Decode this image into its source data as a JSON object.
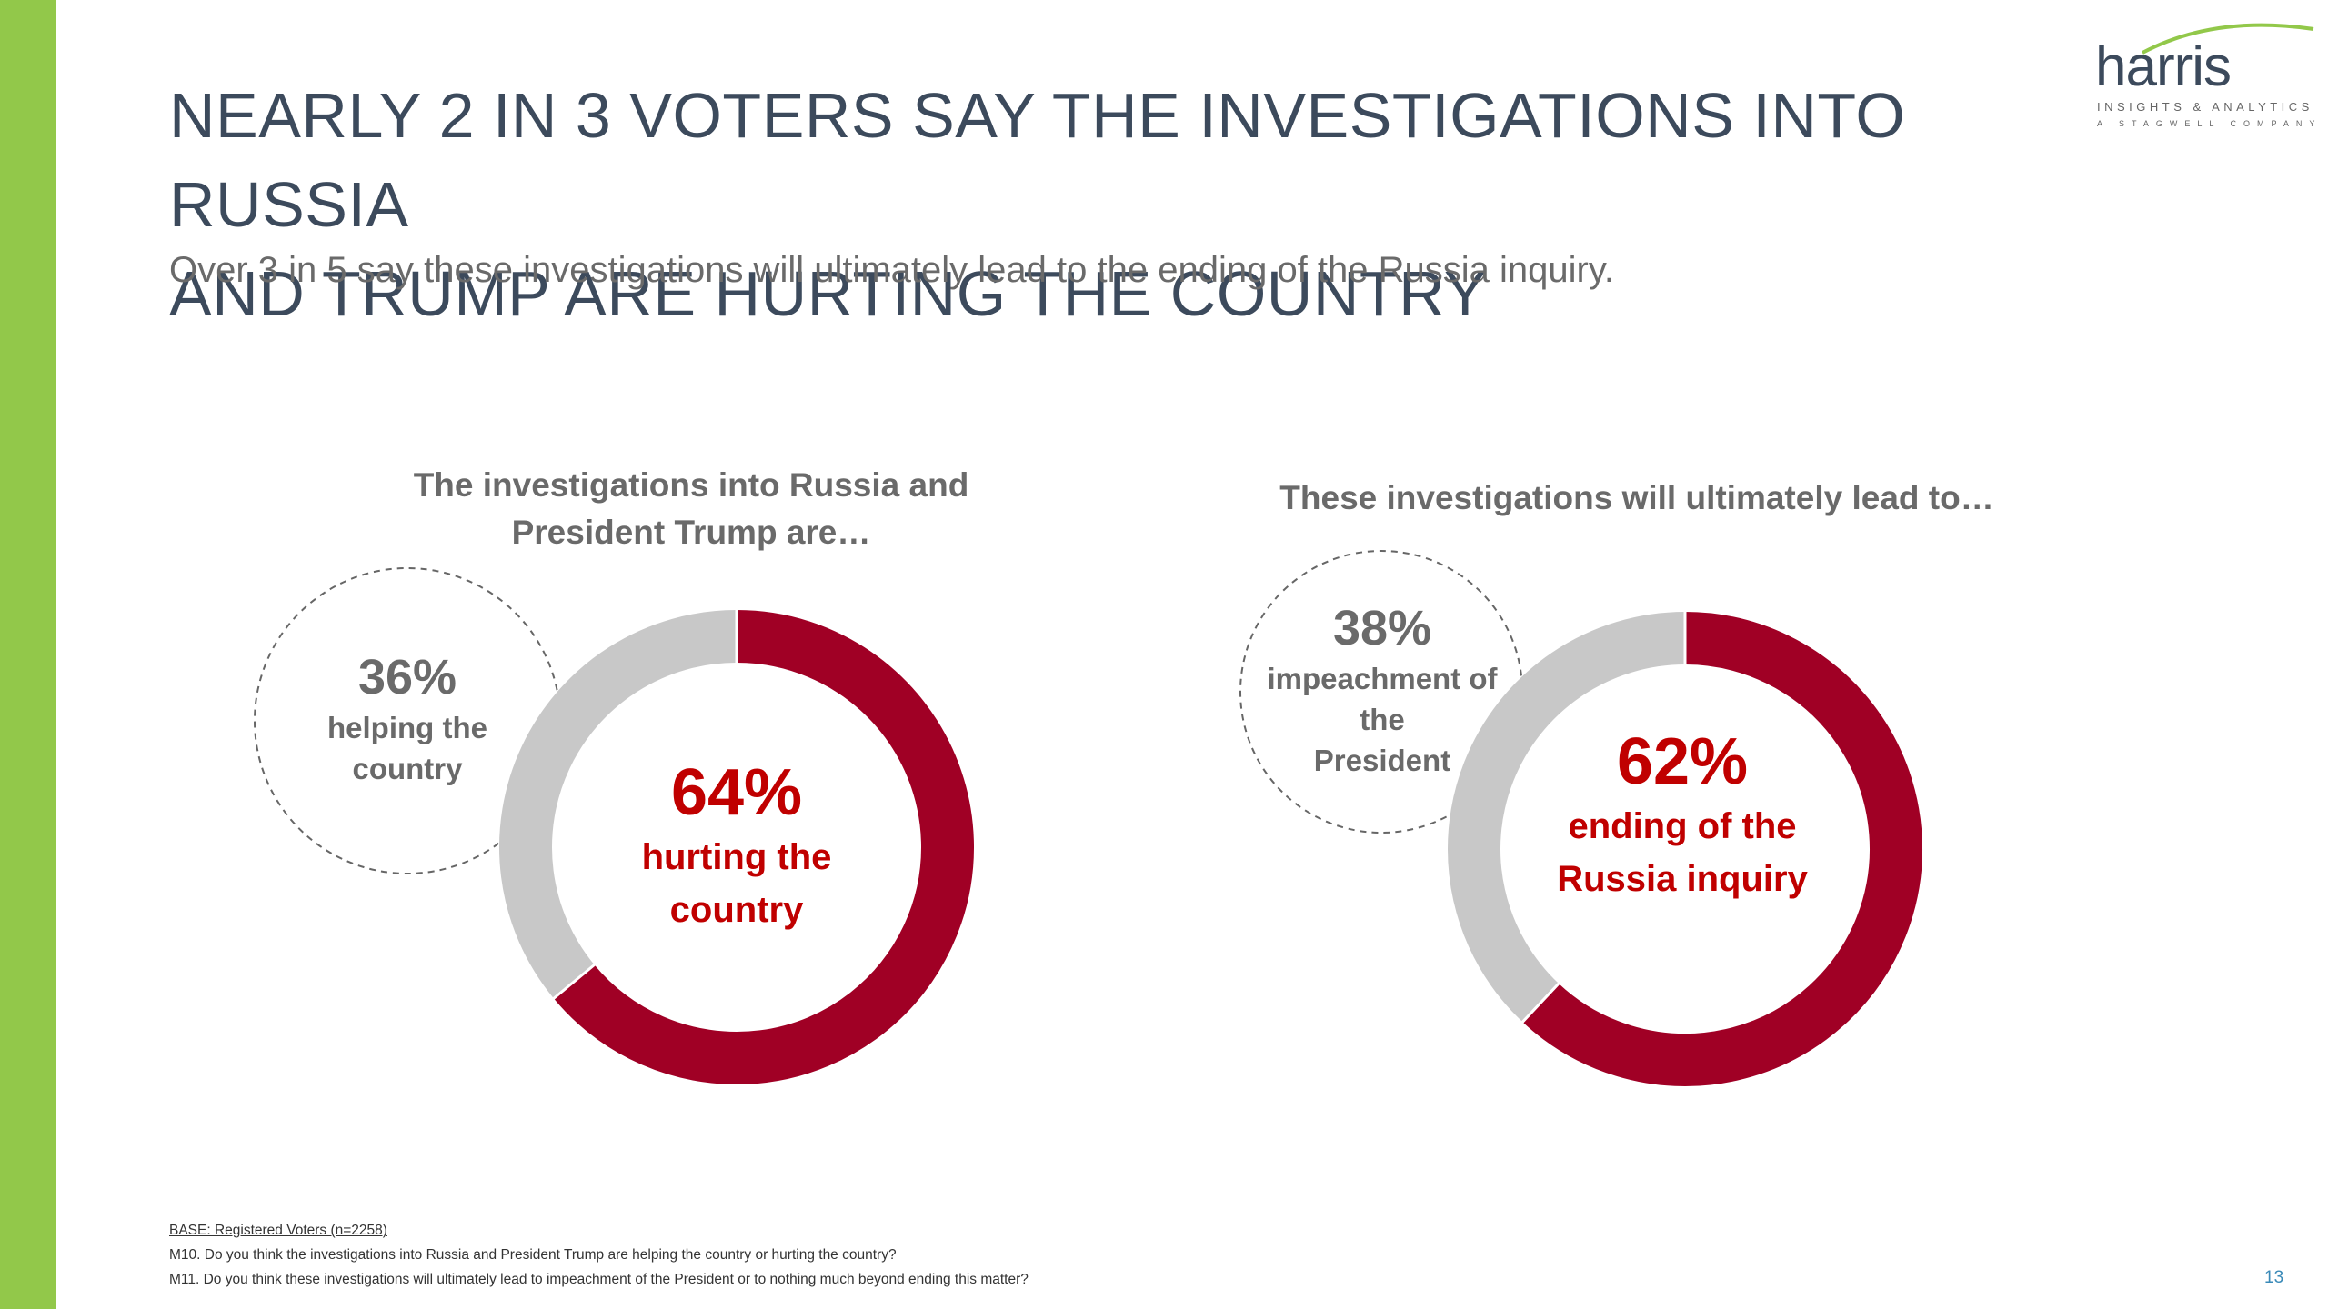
{
  "slide": {
    "title_line1": "NEARLY 2 IN 3 VOTERS SAY THE INVESTIGATIONS INTO RUSSIA",
    "title_line2": "AND TRUMP ARE HURTING THE COUNTRY",
    "subtitle": "Over 3 in 5 say these investigations will ultimately lead to the ending of the Russia inquiry.",
    "page_number": "13"
  },
  "logo": {
    "word": "harris",
    "line1": "INSIGHTS & ANALYTICS",
    "line2": "A STAGWELL COMPANY"
  },
  "footnotes": {
    "base": "BASE: Registered Voters (n=2258)",
    "m10": "M10. Do you think the investigations into Russia and President Trump are helping the country or hurting the country?",
    "m11": "M11. Do you think these investigations will ultimately lead to impeachment of the President or to nothing much beyond ending this matter?"
  },
  "colors": {
    "accent_green": "#92c84a",
    "primary_red": "#a00025",
    "secondary_gray": "#c8c8c8",
    "highlight_text_red": "#c00000"
  },
  "chart_data": [
    {
      "type": "pie",
      "title_line1": "The investigations into Russia and",
      "title_line2": "President Trump are…",
      "slices": [
        {
          "label_pct": "64%",
          "label_line1": "hurting the",
          "label_line2": "country",
          "value": 64,
          "color": "#a00025"
        },
        {
          "label_pct": "36%",
          "label_line1": "helping the",
          "label_line2": "country",
          "value": 36,
          "color": "#c8c8c8"
        }
      ]
    },
    {
      "type": "pie",
      "title_line1": "These investigations will ultimately lead to…",
      "slices": [
        {
          "label_pct": "62%",
          "label_line1": "ending of the",
          "label_line2": "Russia inquiry",
          "value": 62,
          "color": "#a00025"
        },
        {
          "label_pct": "38%",
          "label_line1": "impeachment of",
          "label_line2": "the",
          "label_line3": "President",
          "value": 38,
          "color": "#c8c8c8"
        }
      ]
    }
  ]
}
